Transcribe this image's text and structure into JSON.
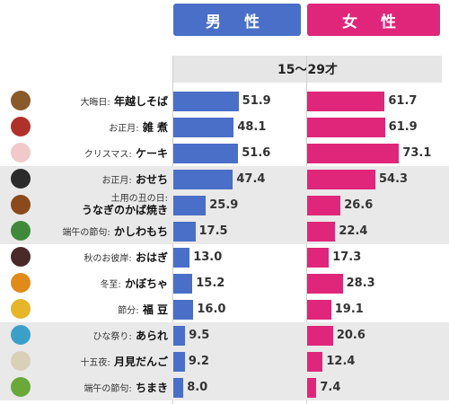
{
  "headers": {
    "male": "男 性",
    "female": "女 性",
    "age_group": "15〜29才"
  },
  "chart_data": {
    "type": "bar",
    "orientation": "horizontal",
    "series": [
      {
        "name": "男 性",
        "color": "#4a6fc8",
        "values": [
          51.9,
          48.1,
          51.6,
          47.4,
          25.9,
          17.5,
          13.0,
          15.2,
          16.0,
          9.5,
          9.2,
          8.0
        ]
      },
      {
        "name": "女 性",
        "color": "#e0267a",
        "values": [
          61.7,
          61.9,
          73.1,
          54.3,
          26.6,
          22.4,
          17.3,
          28.3,
          19.1,
          20.6,
          12.4,
          7.4
        ]
      }
    ],
    "categories": [
      {
        "prefix": "大晦日:",
        "name": "年越しそば",
        "two_line": false,
        "shade": false,
        "icon": "soba-bowl-icon",
        "icon_color": "#8a5a2b"
      },
      {
        "prefix": "お正月:",
        "name": "雑 煮",
        "two_line": false,
        "shade": false,
        "icon": "zoni-bowl-icon",
        "icon_color": "#b0302a"
      },
      {
        "prefix": "クリスマス:",
        "name": "ケーキ",
        "two_line": false,
        "shade": false,
        "icon": "cake-icon",
        "icon_color": "#f2c9c9"
      },
      {
        "prefix": "お正月:",
        "name": "おせち",
        "two_line": false,
        "shade": true,
        "icon": "osechi-box-icon",
        "icon_color": "#2b2b2b"
      },
      {
        "prefix": "土用の丑の日:",
        "name": "うなぎのかば焼き",
        "two_line": true,
        "shade": true,
        "icon": "eel-icon",
        "icon_color": "#8b4a1c"
      },
      {
        "prefix": "端午の節句:",
        "name": "かしわもち",
        "two_line": false,
        "shade": true,
        "icon": "kashiwa-mochi-icon",
        "icon_color": "#3f8a3a"
      },
      {
        "prefix": "秋のお彼岸:",
        "name": "おはぎ",
        "two_line": false,
        "shade": false,
        "icon": "ohagi-icon",
        "icon_color": "#4a2a28"
      },
      {
        "prefix": "冬至:",
        "name": "かぼちゃ",
        "two_line": false,
        "shade": false,
        "icon": "pumpkin-icon",
        "icon_color": "#e08a1a"
      },
      {
        "prefix": "節分:",
        "name": "福 豆",
        "two_line": false,
        "shade": false,
        "icon": "beans-box-icon",
        "icon_color": "#e6b52a"
      },
      {
        "prefix": "ひな祭り:",
        "name": "あられ",
        "two_line": false,
        "shade": true,
        "icon": "arare-icon",
        "icon_color": "#3aa0c8"
      },
      {
        "prefix": "十五夜:",
        "name": "月見だんご",
        "two_line": false,
        "shade": true,
        "icon": "tsukimi-dango-icon",
        "icon_color": "#d9d0b8"
      },
      {
        "prefix": "端午の節句:",
        "name": "ちまき",
        "two_line": false,
        "shade": true,
        "icon": "chimaki-icon",
        "icon_color": "#6aa83a"
      }
    ],
    "xlim": [
      0,
      100
    ],
    "grid": false,
    "legend": "top"
  }
}
